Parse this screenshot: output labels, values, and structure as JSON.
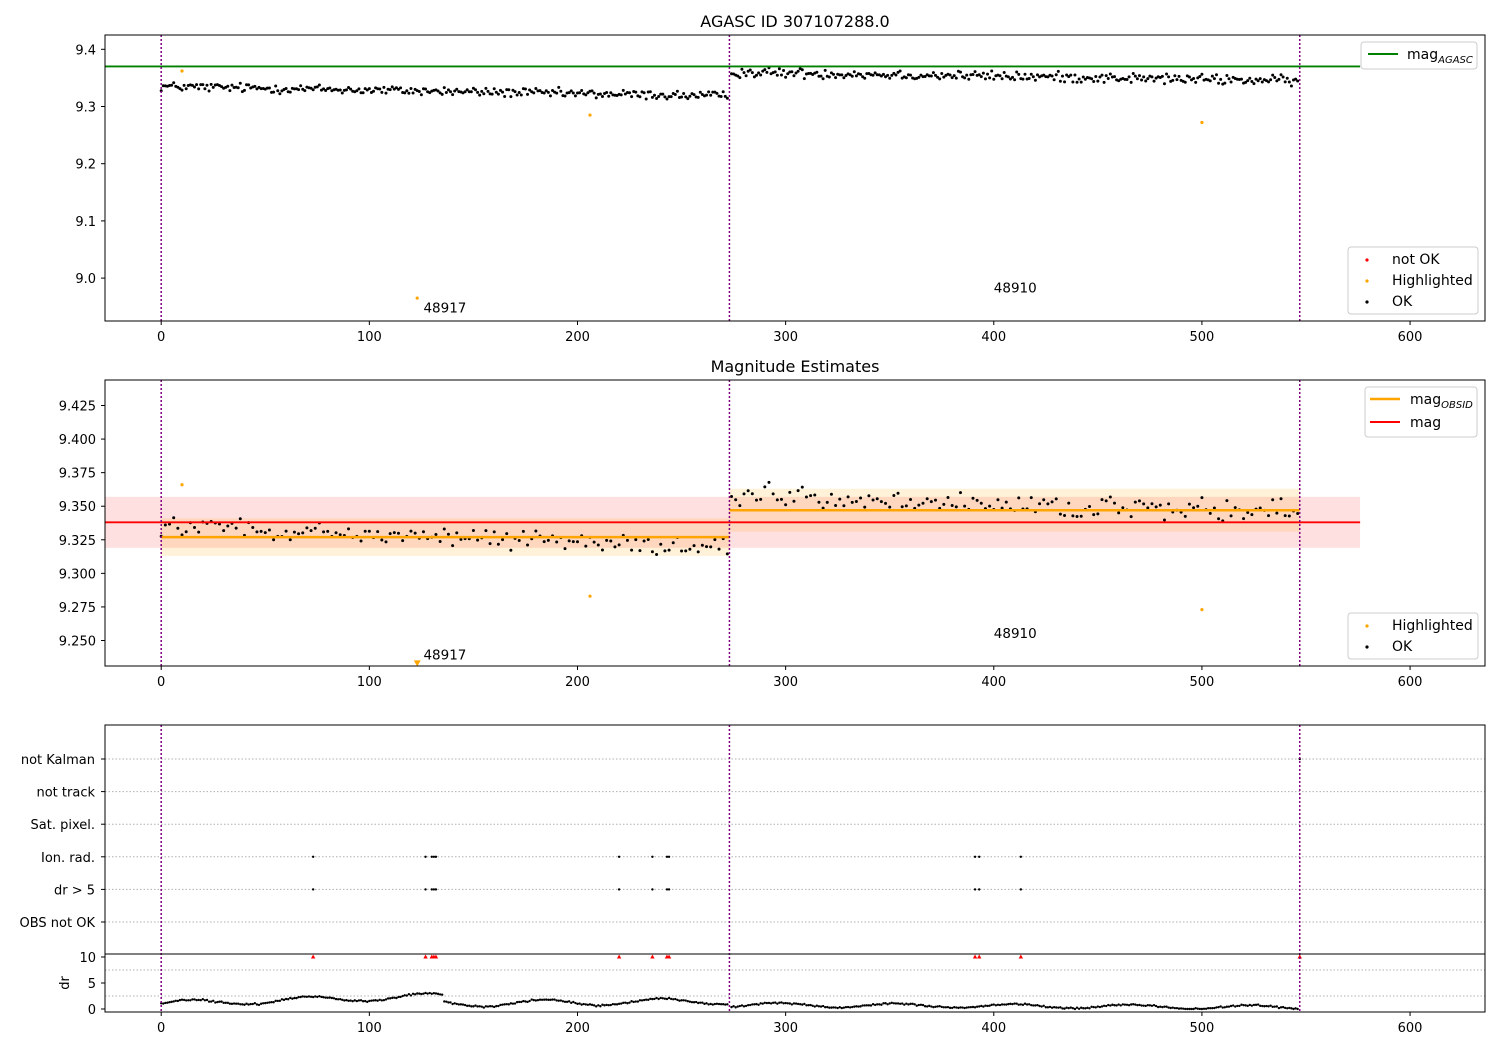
{
  "colors": {
    "ok": "#000000",
    "highlighted": "#ffa500",
    "not_ok": "#ff0000",
    "agasc_line": "#008000",
    "obsid_line": "#ffa500",
    "mag_line": "#ff0000",
    "obs_boundary": "#800080"
  },
  "chart_data": [
    {
      "type": "scatter",
      "title": "AGASC ID 307107288.0",
      "xlim": [
        -27,
        636
      ],
      "ylim": [
        8.925,
        9.425
      ],
      "x_ticks": [
        "0",
        "100",
        "200",
        "300",
        "400",
        "500",
        "600"
      ],
      "y_ticks": [
        "9.0",
        "9.1",
        "9.2",
        "9.3",
        "9.4"
      ],
      "grid": false,
      "obs_boundaries": [
        0,
        273,
        547
      ],
      "reference_lines": [
        {
          "name": "mag_AGASC",
          "y": 9.37,
          "x_range": [
            -27,
            576
          ]
        }
      ],
      "annotations": [
        {
          "text": "48917",
          "x": 126,
          "y": 8.94
        },
        {
          "text": "48910",
          "x": 400,
          "y": 8.975
        }
      ],
      "highlighted_points": [
        {
          "x": 10,
          "y": 9.362
        },
        {
          "x": 206,
          "y": 9.285
        },
        {
          "x": 123,
          "y": 8.965
        },
        {
          "x": 500,
          "y": 9.272
        }
      ],
      "series_segments": [
        {
          "x_start": 0,
          "x_end": 272,
          "level_start": 9.335,
          "level_end": 9.318,
          "spread": 0.012
        },
        {
          "x_start": 274,
          "x_end": 546,
          "level_start": 9.36,
          "level_end": 9.345,
          "spread": 0.013
        }
      ],
      "legend": {
        "position": "top-right",
        "entries": [
          {
            "label": "mag",
            "subscript": "AGASC",
            "kind": "line",
            "color": "#008000"
          }
        ]
      },
      "legend2": {
        "position": "lower-right",
        "entries": [
          {
            "label": "not OK",
            "kind": "dot",
            "color": "#ff0000"
          },
          {
            "label": "Highlighted",
            "kind": "dot",
            "color": "#ffa500"
          },
          {
            "label": "OK",
            "kind": "dot",
            "color": "#000000"
          }
        ]
      }
    },
    {
      "type": "scatter",
      "title": "Magnitude Estimates",
      "xlim": [
        -27,
        636
      ],
      "ylim": [
        9.231,
        9.444
      ],
      "x_ticks": [
        "0",
        "100",
        "200",
        "300",
        "400",
        "500",
        "600"
      ],
      "y_ticks": [
        "9.250",
        "9.275",
        "9.300",
        "9.325",
        "9.350",
        "9.375",
        "9.400",
        "9.425"
      ],
      "grid": false,
      "obs_boundaries": [
        0,
        273,
        547
      ],
      "mag_band": {
        "y": 9.338,
        "half_width": 0.019,
        "x_range": [
          -27,
          576
        ]
      },
      "obsid_lines": [
        {
          "x_range": [
            0,
            273
          ],
          "y": 9.327,
          "half_width": 0.014
        },
        {
          "x_range": [
            273,
            547
          ],
          "y": 9.347,
          "half_width": 0.016
        }
      ],
      "annotations": [
        {
          "text": "48917",
          "x": 126,
          "y": 9.236
        },
        {
          "text": "48910",
          "x": 400,
          "y": 9.252
        }
      ],
      "highlighted_points": [
        {
          "x": 10,
          "y": 9.366
        },
        {
          "x": 206,
          "y": 9.283
        },
        {
          "x": 500,
          "y": 9.273
        }
      ],
      "offscale_marker": {
        "x": 123,
        "y": 9.233
      },
      "legend": {
        "position": "top-right",
        "entries": [
          {
            "label": "mag",
            "subscript": "OBSID",
            "kind": "line",
            "color": "#ffa500"
          },
          {
            "label": "mag",
            "subscript": "",
            "kind": "line",
            "color": "#ff0000"
          }
        ]
      },
      "legend2": {
        "position": "lower-right",
        "entries": [
          {
            "label": "Highlighted",
            "kind": "dot",
            "color": "#ffa500"
          },
          {
            "label": "OK",
            "kind": "dot",
            "color": "#000000"
          }
        ]
      }
    },
    {
      "type": "scatter",
      "title": "",
      "xlim": [
        -27,
        636
      ],
      "x_ticks": [
        "0",
        "100",
        "200",
        "300",
        "400",
        "500",
        "600"
      ],
      "obs_boundaries": [
        0,
        273,
        547
      ],
      "flag_rows": [
        "not Kalman",
        "not track",
        "Sat. pixel.",
        "Ion. rad.",
        "dr > 5",
        "OBS not OK"
      ],
      "flag_points": {
        "Ion. rad.": [
          73,
          127,
          130,
          131,
          132,
          220,
          236,
          243,
          244,
          391,
          393,
          413
        ],
        "dr > 5": [
          73,
          127,
          130,
          131,
          132,
          220,
          236,
          243,
          244,
          391,
          393,
          413
        ],
        "not Kalman": [
          547
        ]
      },
      "dr_panel": {
        "ylabel": "dr",
        "ylim": [
          -0.5,
          11
        ],
        "y_ticks": [
          "0",
          "5",
          "10"
        ],
        "saturated_value": 10,
        "saturated_x": [
          73,
          127,
          130,
          131,
          132,
          220,
          236,
          243,
          244,
          391,
          393,
          413,
          547
        ],
        "segments": [
          {
            "x_start": 0,
            "x_end": 135,
            "level_start": 1.0,
            "level_end": 2.5,
            "spread": 0.6
          },
          {
            "x_start": 136,
            "x_end": 272,
            "level_start": 1.0,
            "level_end": 1.5,
            "spread": 0.6
          },
          {
            "x_start": 274,
            "x_end": 546,
            "level_start": 0.8,
            "level_end": 0.3,
            "spread": 0.4
          }
        ]
      }
    }
  ]
}
